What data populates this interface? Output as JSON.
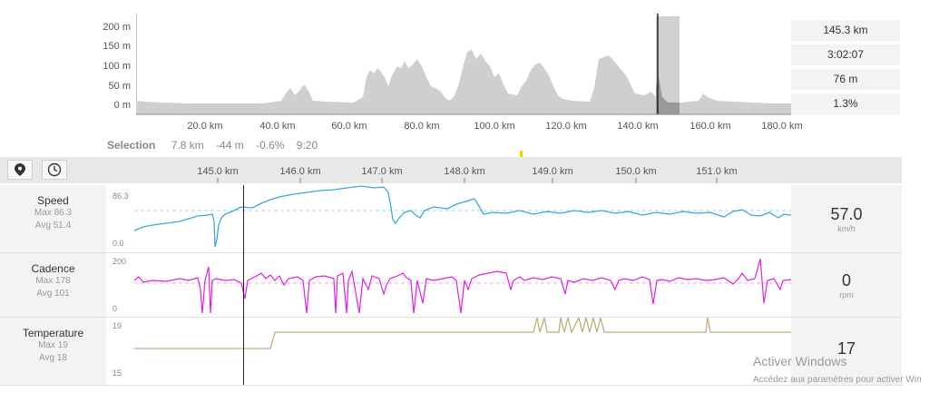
{
  "elevation_profile": {
    "y_ticks": [
      "200 m",
      "150 m",
      "100 m",
      "50 m",
      "0 m"
    ],
    "x_ticks": [
      "20.0 km",
      "40.0 km",
      "60.0 km",
      "80.0 km",
      "100.0 km",
      "120.0 km",
      "140.0 km",
      "160.0 km",
      "180.0 km"
    ],
    "selection_range_km": [
      144.0,
      151.8
    ],
    "cursor_km": 145.3
  },
  "summary": {
    "distance": "145.3 km",
    "time": "3:02:07",
    "elevation": "76 m",
    "grade": "1.3%"
  },
  "selection": {
    "label": "Selection",
    "distance": "7.8 km",
    "elevation": "-44 m",
    "grade": "-0.6%",
    "time": "9:20"
  },
  "toolbar": {
    "distance_mode_icon": "map-pin-icon",
    "time_mode_icon": "clock-icon"
  },
  "detail_axis": {
    "ticks": [
      "145.0 km",
      "146.0 km",
      "147.0 km",
      "148.0 km",
      "149.0 km",
      "150.0 km",
      "151.0 km"
    ],
    "cursor_km": 145.3
  },
  "metrics": {
    "speed": {
      "name": "Speed",
      "max": "Max 86.3",
      "avg": "Avg 51.4",
      "axis_top": "86.3",
      "axis_bottom": "0.0",
      "value": "57.0",
      "unit": "km/h",
      "color": "#3aa9dd"
    },
    "cadence": {
      "name": "Cadence",
      "max": "Max 178",
      "avg": "Avg 101",
      "axis_top": "200",
      "axis_bottom": "0",
      "value": "0",
      "unit": "rpm",
      "color": "#e020e0"
    },
    "temperature": {
      "name": "Temperature",
      "max": "Max 19",
      "avg": "Avg 18",
      "axis_top": "19",
      "axis_bottom": "15",
      "value": "17",
      "unit": "",
      "color": "#bfae7a"
    }
  },
  "watermark": {
    "title": "Activer Windows",
    "subtitle": "Accédez aux paramètres pour activer Win"
  }
}
